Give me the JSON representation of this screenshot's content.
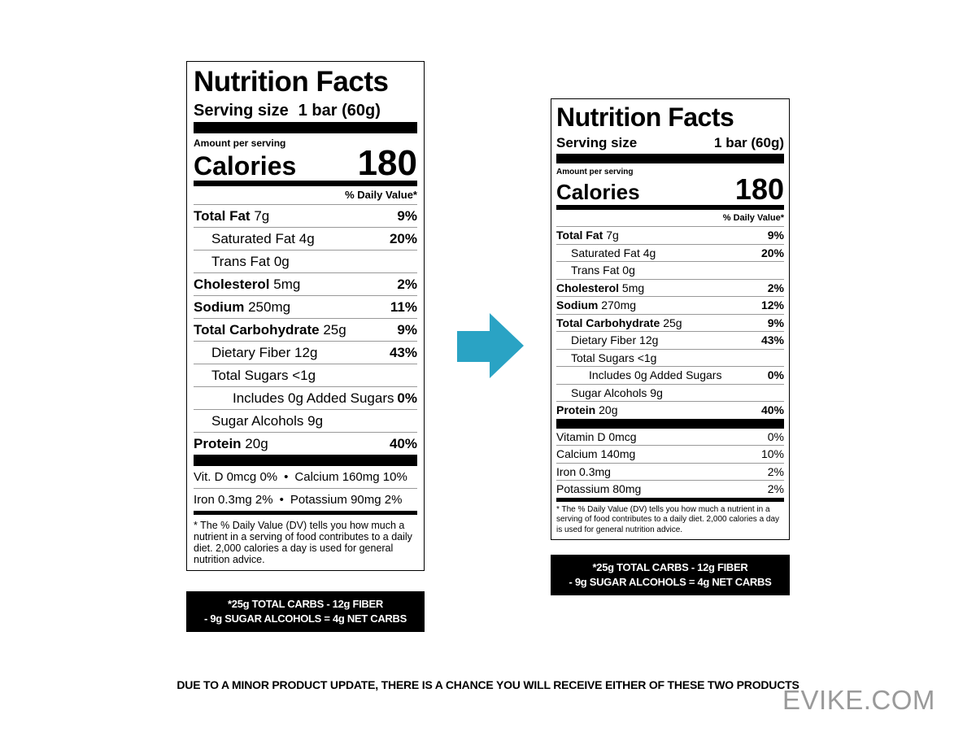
{
  "labels": [
    {
      "title": "Nutrition Facts",
      "serving_label": "Serving size",
      "serving_value": "1 bar (60g)",
      "amount_label": "Amount per serving",
      "calories_label": "Calories",
      "calories_value": "180",
      "dv_header": "% Daily Value*",
      "nutrients": [
        {
          "name": "Total Fat",
          "amount": "7g",
          "dv": "9%",
          "sub": [
            {
              "name": "Saturated Fat",
              "amount": "4g",
              "dv": "20%"
            },
            {
              "name": "Trans Fat",
              "amount": "0g"
            }
          ]
        },
        {
          "name": "Cholesterol",
          "amount": "5mg",
          "dv": "2%"
        },
        {
          "name": "Sodium",
          "amount": "250mg",
          "dv": "11%"
        },
        {
          "name": "Total Carbohydrate",
          "amount": "25g",
          "dv": "9%",
          "sub": [
            {
              "name": "Dietary Fiber",
              "amount": "12g",
              "dv": "43%"
            },
            {
              "name": "Total Sugars",
              "amount": "<1g",
              "sub": [
                {
                  "name": "Includes 0g Added Sugars",
                  "dv": "0%"
                }
              ]
            },
            {
              "name": "Sugar Alcohols",
              "amount": "9g"
            }
          ]
        },
        {
          "name": "Protein",
          "amount": "20g",
          "dv": "40%"
        }
      ],
      "vitamins": [
        {
          "name": "Vit. D",
          "amount": "0mcg",
          "dv": "0%"
        },
        {
          "name": "Calcium",
          "amount": "160mg",
          "dv": "10%"
        },
        {
          "name": "Iron",
          "amount": "0.3mg",
          "dv": "2%"
        },
        {
          "name": "Potassium",
          "amount": "90mg",
          "dv": "2%"
        }
      ],
      "footnote": "* The % Daily Value (DV) tells you how much a nutrient in a serving of food contributes to a daily diet. 2,000 calories a day is used for general nutrition advice.",
      "net_carbs": [
        "*25g TOTAL CARBS - 12g FIBER",
        "- 9g SUGAR ALCOHOLS = 4g NET CARBS"
      ]
    },
    {
      "title": "Nutrition Facts",
      "serving_label": "Serving size",
      "serving_value": "1 bar (60g)",
      "amount_label": "Amount per serving",
      "calories_label": "Calories",
      "calories_value": "180",
      "dv_header": "% Daily Value*",
      "nutrients": [
        {
          "name": "Total Fat",
          "amount": "7g",
          "dv": "9%",
          "sub": [
            {
              "name": "Saturated Fat",
              "amount": "4g",
              "dv": "20%"
            },
            {
              "name": "Trans Fat",
              "amount": "0g"
            }
          ]
        },
        {
          "name": "Cholesterol",
          "amount": "5mg",
          "dv": "2%"
        },
        {
          "name": "Sodium",
          "amount": "270mg",
          "dv": "12%"
        },
        {
          "name": "Total Carbohydrate",
          "amount": "25g",
          "dv": "9%",
          "sub": [
            {
              "name": "Dietary Fiber",
              "amount": "12g",
              "dv": "43%"
            },
            {
              "name": "Total Sugars",
              "amount": "<1g",
              "sub": [
                {
                  "name": "Includes 0g Added Sugars",
                  "dv": "0%"
                }
              ]
            },
            {
              "name": "Sugar Alcohols",
              "amount": "9g"
            }
          ]
        },
        {
          "name": "Protein",
          "amount": "20g",
          "dv": "40%"
        }
      ],
      "vitamins": [
        {
          "name": "Vitamin D",
          "amount": "0mcg",
          "dv": "0%"
        },
        {
          "name": "Calcium",
          "amount": "140mg",
          "dv": "10%"
        },
        {
          "name": "Iron",
          "amount": "0.3mg",
          "dv": "2%"
        },
        {
          "name": "Potassium",
          "amount": "80mg",
          "dv": "2%"
        }
      ],
      "footnote": "* The % Daily Value (DV) tells you how much a nutrient in a serving of food contributes to a daily diet. 2,000 calories a day is used for general nutrition advice.",
      "net_carbs": [
        "*25g TOTAL CARBS - 12g FIBER",
        "- 9g SUGAR ALCOHOLS = 4g NET CARBS"
      ]
    }
  ],
  "notice": "DUE TO A MINOR PRODUCT UPDATE, THERE IS A CHANCE YOU WILL RECEIVE EITHER OF THESE TWO PRODUCTS",
  "watermark": "EVIKE.COM"
}
